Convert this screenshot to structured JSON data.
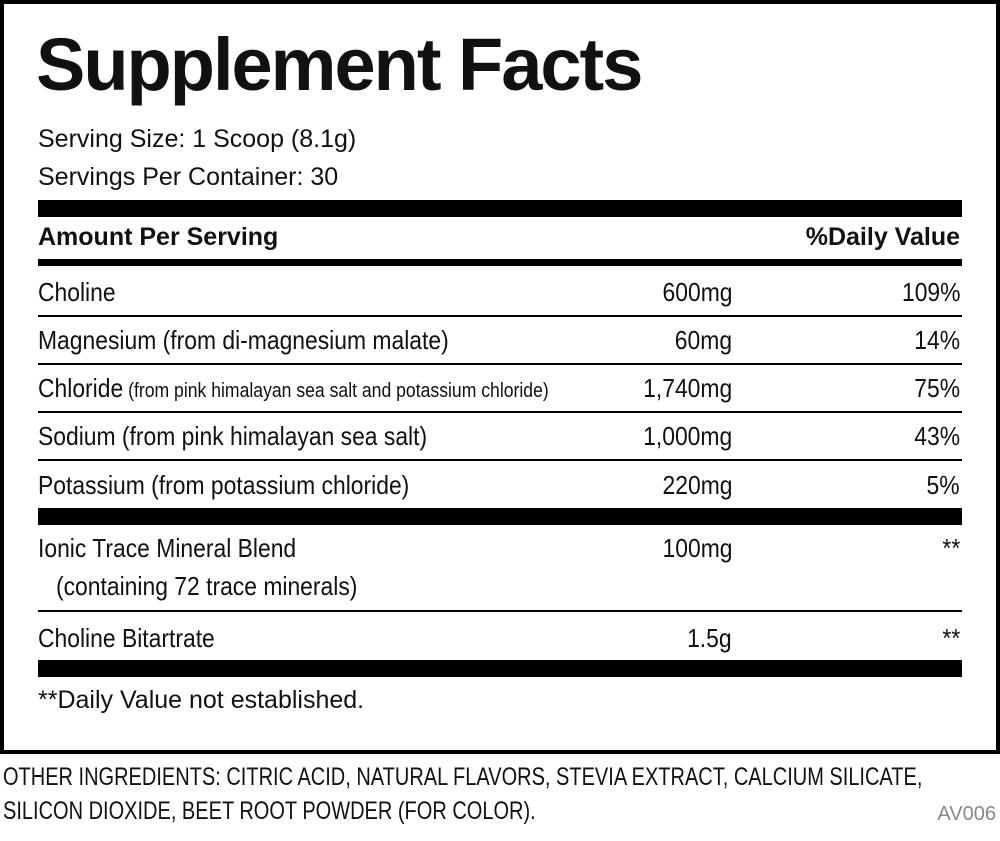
{
  "title": "Supplement Facts",
  "serving_size": "Serving Size: 1 Scoop (8.1g)",
  "servings_per_container": "Servings Per Container: 30",
  "header": {
    "amount": "Amount Per Serving",
    "dv": "%Daily Value"
  },
  "rows": [
    {
      "name": "Choline",
      "amount": "600mg",
      "dv": "109%"
    },
    {
      "name": "Magnesium (from di-magnesium malate)",
      "amount": "60mg",
      "dv": "14%"
    },
    {
      "name": "Chloride",
      "note": "(from pink himalayan sea salt and potassium chloride)",
      "amount": "1,740mg",
      "dv": "75%"
    },
    {
      "name": "Sodium (from pink himalayan sea salt)",
      "amount": "1,000mg",
      "dv": "43%"
    },
    {
      "name": "Potassium (from potassium chloride)",
      "amount": "220mg",
      "dv": "5%"
    },
    {
      "name": "Ionic Trace Mineral Blend",
      "note": "(containing 72 trace minerals)",
      "amount": "100mg",
      "dv": "**"
    },
    {
      "name": "Choline Bitartrate",
      "amount": "1.5g",
      "dv": "**"
    }
  ],
  "footnote": "**Daily Value not established.",
  "other_ingredients": [
    "OTHER INGREDIENTS: CITRIC ACID, NATURAL FLAVORS, STEVIA EXTRACT, CALCIUM SILICATE,",
    "SILICON DIOXIDE, BEET ROOT POWDER (FOR COLOR)."
  ],
  "code": "AV006"
}
